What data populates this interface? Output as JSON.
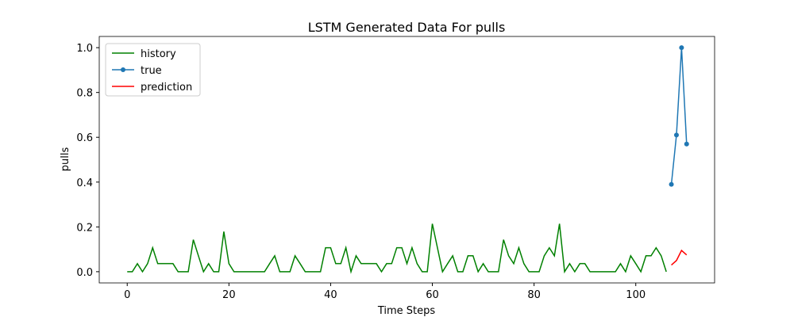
{
  "chart_data": {
    "type": "line",
    "title": "LSTM Generated Data For pulls",
    "xlabel": "Time Steps",
    "ylabel": "pulls",
    "xlim": [
      -5.5,
      115.5
    ],
    "ylim": [
      -0.05,
      1.05
    ],
    "xticks": [
      0,
      20,
      40,
      60,
      80,
      100
    ],
    "yticks": [
      {
        "value": 0,
        "label": "0.0"
      },
      {
        "value": 0.2,
        "label": "0.2"
      },
      {
        "value": 0.4,
        "label": "0.4"
      },
      {
        "value": 0.6,
        "label": "0.6"
      },
      {
        "value": 0.8,
        "label": "0.8"
      },
      {
        "value": 1.0,
        "label": "1.0"
      }
    ],
    "legend": "upper left",
    "series": [
      {
        "name": "history",
        "color": "#008000",
        "x": [
          0,
          1,
          2,
          3,
          4,
          5,
          6,
          7,
          8,
          9,
          10,
          11,
          12,
          13,
          14,
          15,
          16,
          17,
          18,
          19,
          20,
          21,
          22,
          23,
          24,
          25,
          26,
          27,
          28,
          29,
          30,
          31,
          32,
          33,
          34,
          35,
          36,
          37,
          38,
          39,
          40,
          41,
          42,
          43,
          44,
          45,
          46,
          47,
          48,
          49,
          50,
          51,
          52,
          53,
          54,
          55,
          56,
          57,
          58,
          59,
          60,
          61,
          62,
          63,
          64,
          65,
          66,
          67,
          68,
          69,
          70,
          71,
          72,
          73,
          74,
          75,
          76,
          77,
          78,
          79,
          80,
          81,
          82,
          83,
          84,
          85,
          86,
          87,
          88,
          89,
          90,
          91,
          92,
          93,
          94,
          95,
          96,
          97,
          98,
          99,
          100,
          101,
          102,
          103,
          104,
          105,
          106
        ],
        "values": [
          0,
          0,
          0.036,
          0,
          0.036,
          0.107,
          0.036,
          0.036,
          0.036,
          0.036,
          0,
          0,
          0,
          0.143,
          0.071,
          0,
          0.036,
          0,
          0,
          0.179,
          0.036,
          0,
          0,
          0,
          0,
          0,
          0,
          0,
          0.036,
          0.071,
          0,
          0,
          0,
          0.071,
          0.036,
          0,
          0,
          0,
          0,
          0.107,
          0.107,
          0.036,
          0.036,
          0.107,
          0,
          0.071,
          0.036,
          0.036,
          0.036,
          0.036,
          0,
          0.036,
          0.036,
          0.107,
          0.107,
          0.036,
          0.107,
          0.036,
          0,
          0,
          0.214,
          0.107,
          0,
          0.036,
          0.071,
          0,
          0,
          0.071,
          0.071,
          0,
          0.036,
          0,
          0,
          0,
          0.143,
          0.071,
          0.036,
          0.107,
          0.036,
          0,
          0,
          0,
          0.071,
          0.107,
          0.071,
          0.214,
          0,
          0.036,
          0,
          0.036,
          0.036,
          0,
          0,
          0,
          0,
          0,
          0,
          0.036,
          0,
          0.071,
          0.036,
          0,
          0.071,
          0.071,
          0.107,
          0.071,
          0
        ]
      },
      {
        "name": "true",
        "color": "#1f77b4",
        "marker": "o",
        "x": [
          107,
          108,
          109,
          110
        ],
        "values": [
          0.39,
          0.61,
          1.0,
          0.57
        ]
      },
      {
        "name": "prediction",
        "color": "#ff0000",
        "x": [
          107,
          108,
          109,
          110
        ],
        "values": [
          0.03,
          0.05,
          0.095,
          0.075
        ]
      }
    ]
  }
}
